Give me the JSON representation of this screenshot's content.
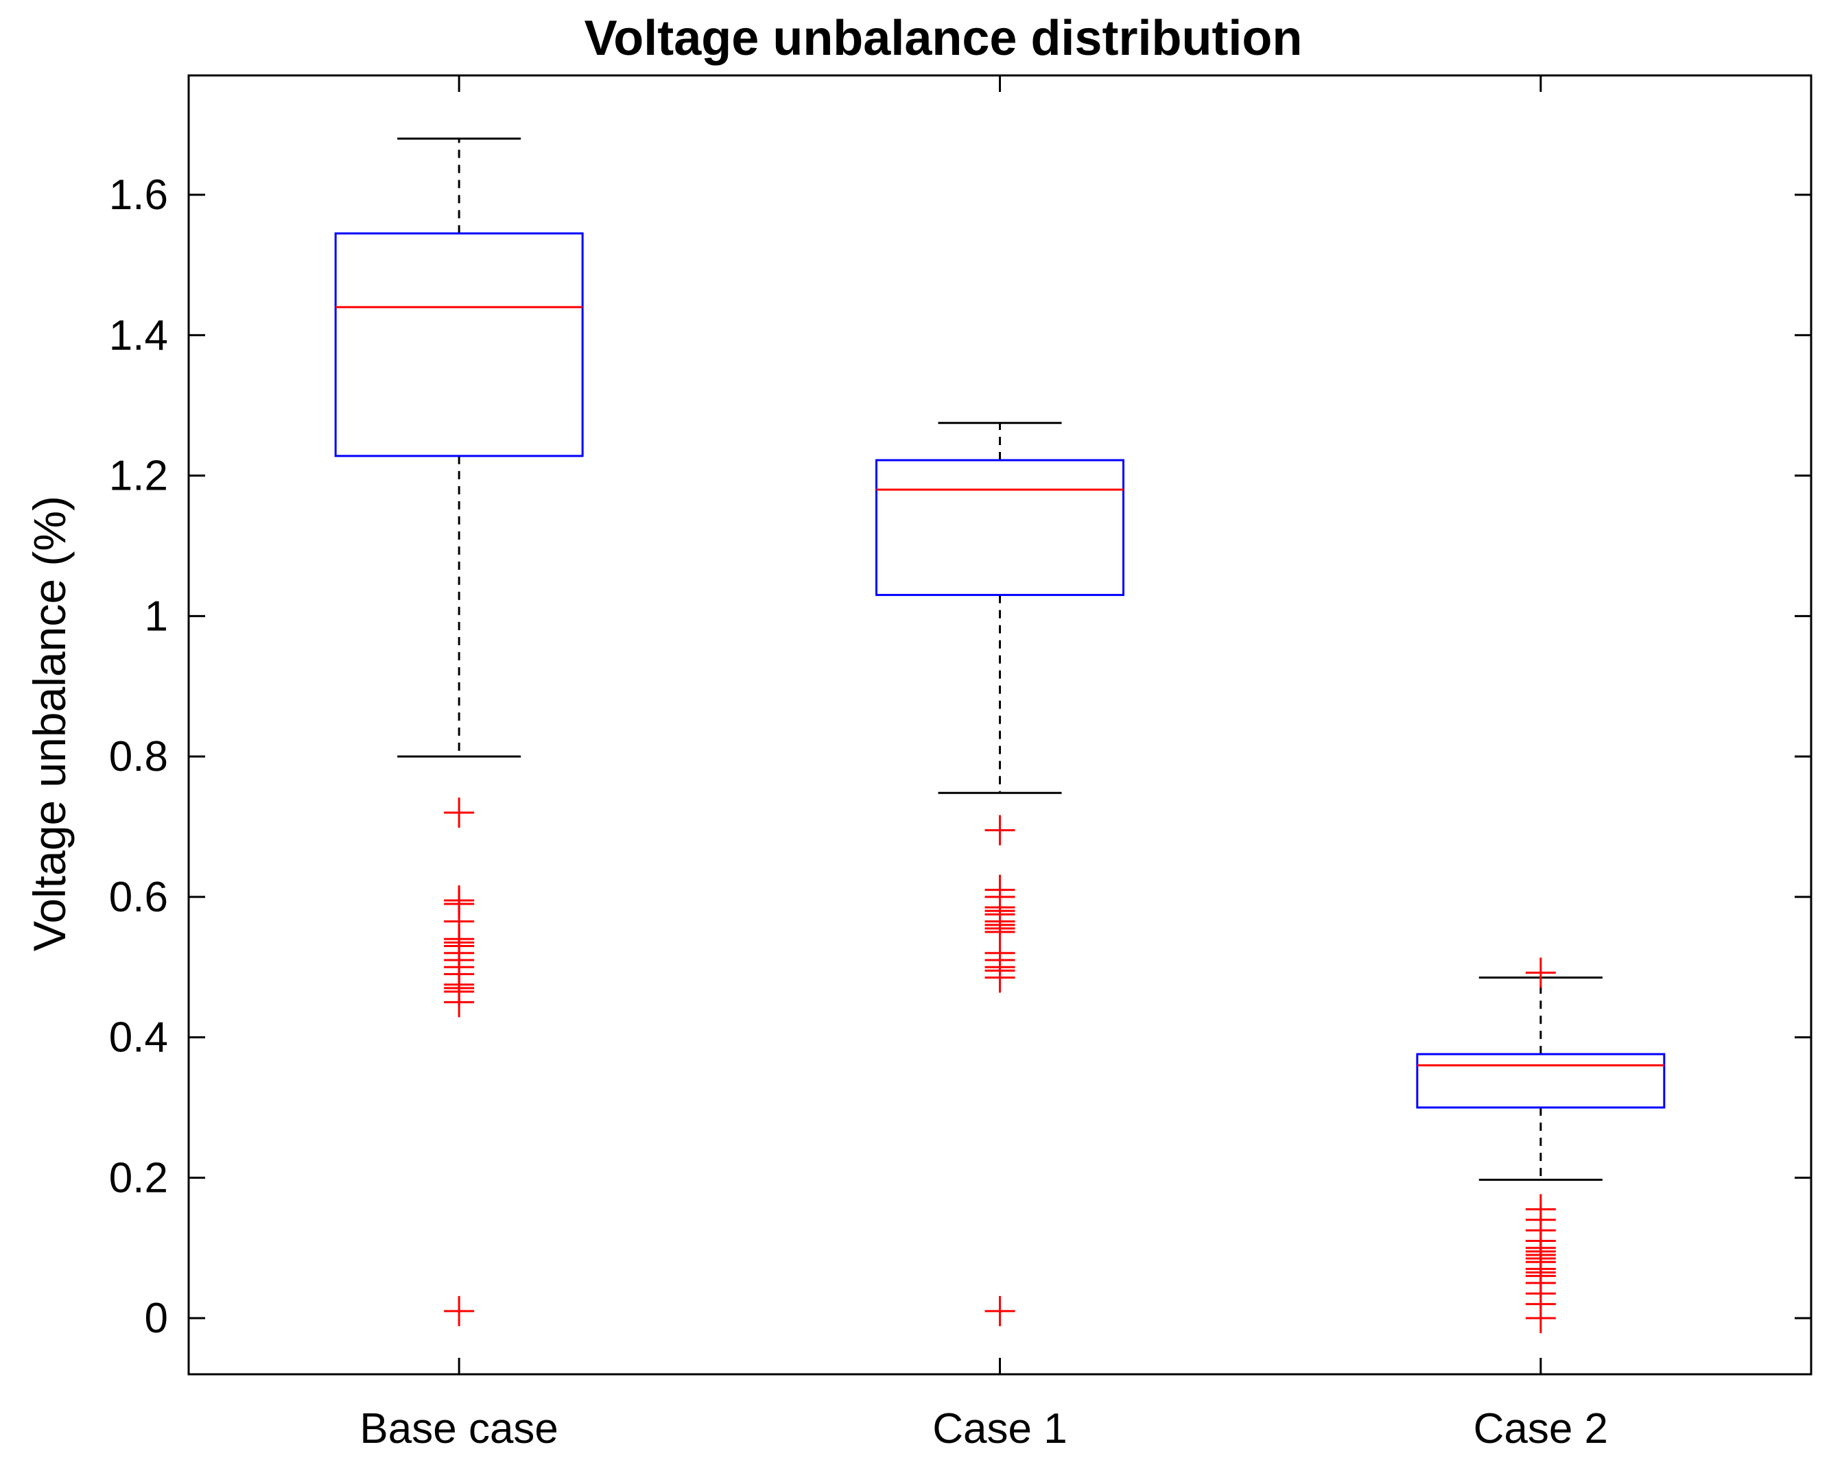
{
  "chart_data": {
    "type": "boxplot",
    "title": "Voltage unbalance distribution",
    "xlabel": "",
    "ylabel": "Voltage unbalance (%)",
    "ylim": [
      -0.08,
      1.77
    ],
    "yticks": [
      0,
      0.2,
      0.4,
      0.6,
      0.8,
      1,
      1.2,
      1.4,
      1.6
    ],
    "ytick_labels": [
      "0",
      "0.2",
      "0.4",
      "0.6",
      "0.8",
      "1",
      "1.2",
      "1.4",
      "1.6"
    ],
    "grid": false,
    "categories": [
      "Base case",
      "Case 1",
      "Case 2"
    ],
    "boxes": [
      {
        "name": "Base case",
        "whisker_low": 0.8,
        "q1": 1.228,
        "median": 1.44,
        "q3": 1.545,
        "whisker_high": 1.68,
        "outliers": [
          0.72,
          0.595,
          0.59,
          0.565,
          0.54,
          0.535,
          0.53,
          0.52,
          0.51,
          0.5,
          0.49,
          0.475,
          0.47,
          0.465,
          0.45,
          0.01
        ]
      },
      {
        "name": "Case 1",
        "whisker_low": 0.748,
        "q1": 1.03,
        "median": 1.18,
        "q3": 1.222,
        "whisker_high": 1.275,
        "outliers": [
          0.695,
          0.61,
          0.6,
          0.585,
          0.58,
          0.575,
          0.565,
          0.56,
          0.555,
          0.55,
          0.52,
          0.51,
          0.5,
          0.495,
          0.485,
          0.01
        ]
      },
      {
        "name": "Case 2",
        "whisker_low": 0.197,
        "q1": 0.3,
        "median": 0.36,
        "q3": 0.376,
        "whisker_high": 0.485,
        "outliers": [
          0.492,
          0.155,
          0.14,
          0.125,
          0.11,
          0.1,
          0.095,
          0.09,
          0.085,
          0.08,
          0.07,
          0.065,
          0.06,
          0.05,
          0.035,
          0.02,
          0.0
        ]
      }
    ],
    "colors": {
      "box": "#0000ff",
      "median": "#ff0000",
      "whisker": "#000000",
      "outlier": "#ff0000",
      "axis": "#000000"
    }
  }
}
